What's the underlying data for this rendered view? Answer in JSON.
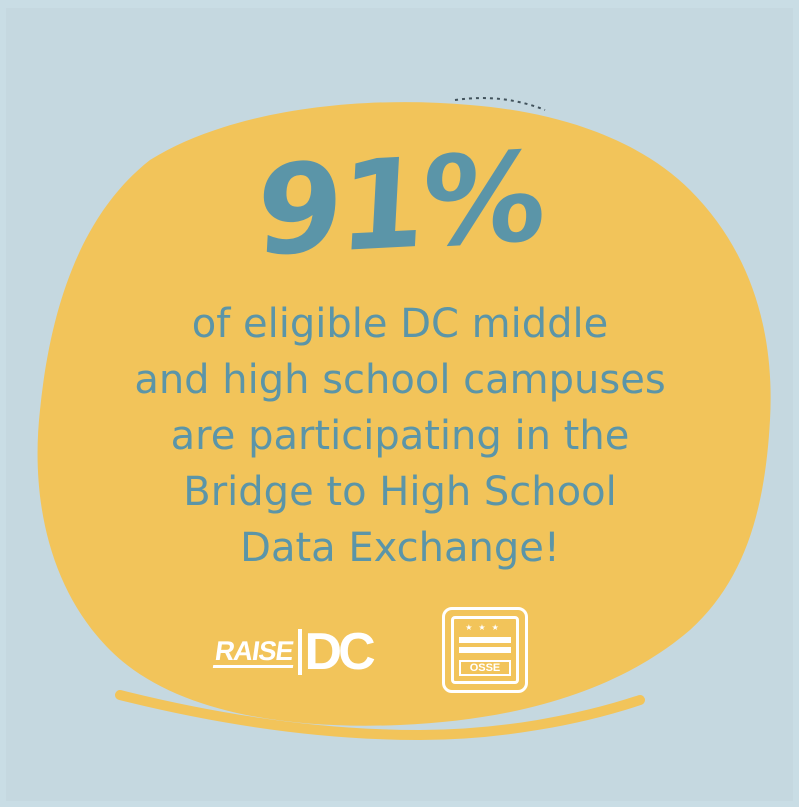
{
  "headline": {
    "stat": "91%"
  },
  "message": {
    "lines": [
      "of eligible DC middle",
      "and high school campuses",
      "are participating in the",
      "Bridge to High School",
      "Data Exchange!"
    ]
  },
  "logos": {
    "raise_dc": {
      "raise": "RAISE",
      "dc": "DC"
    },
    "osse": {
      "label": "OSSE",
      "stars": "★★★"
    }
  },
  "colors": {
    "background": "#c5d8e0",
    "blob": "#f2c45a",
    "text": "#5b95a8",
    "logo": "#ffffff"
  }
}
